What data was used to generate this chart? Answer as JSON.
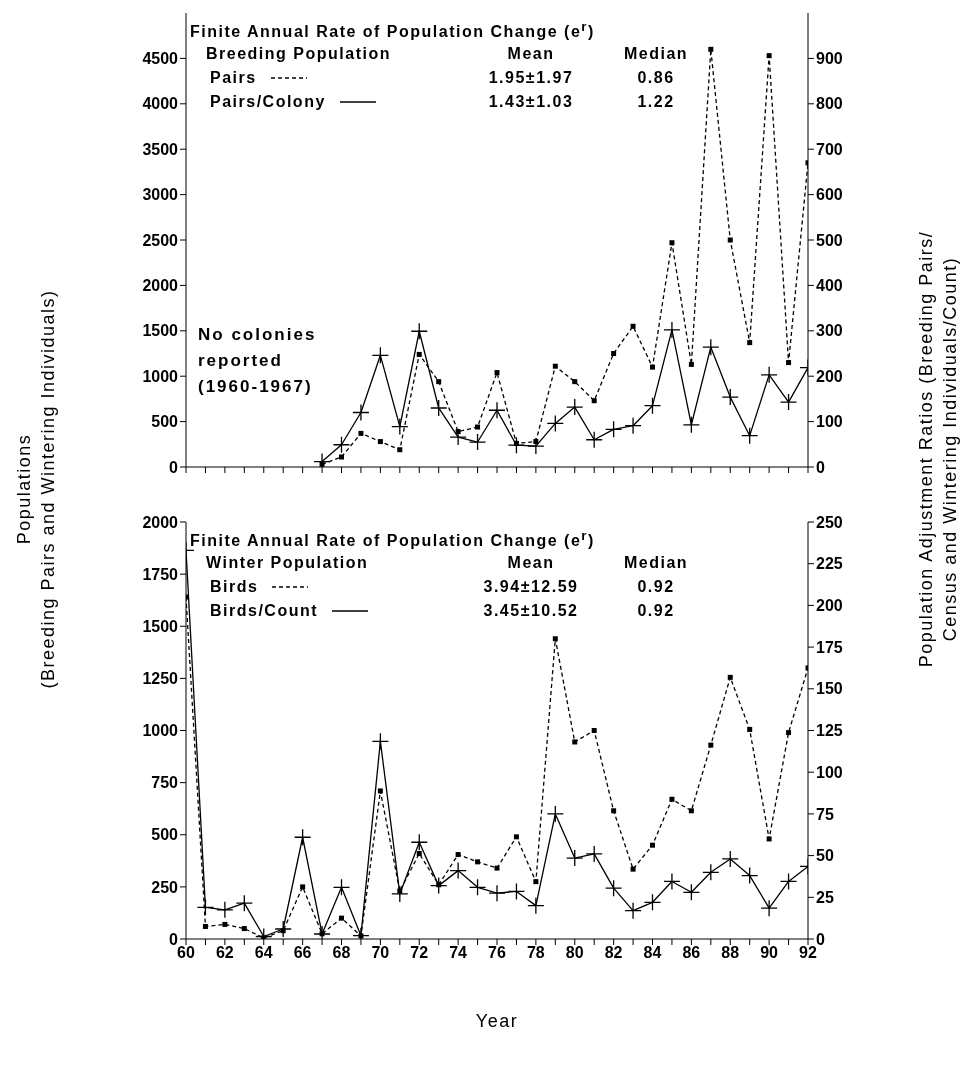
{
  "chart_data": [
    {
      "type": "line",
      "legend_title": "Finite Annual Rate of Population Change (e$^{r}$)",
      "ylabel": "Populations\n(Breeding Pairs and Wintering Individuals)",
      "y2label": "Population Adjustment Ratios (Breeding Pairs/\nCensus and Wintering Individuals/Count)",
      "annotations": [
        "Breeding Population",
        "Mean",
        "Median",
        "1.95±1.97",
        "0.86",
        "1.43±1.03",
        "1.22",
        "No colonies reported (1960-1967)"
      ],
      "x": [
        67,
        68,
        69,
        70,
        71,
        72,
        73,
        74,
        75,
        76,
        77,
        78,
        79,
        80,
        81,
        82,
        83,
        84,
        85,
        86,
        87,
        88,
        89,
        90,
        91,
        92
      ],
      "series": [
        {
          "name": "Pairs",
          "color": "#000000",
          "line_style": "dashed",
          "marker": "square",
          "values": [
            30,
            110,
            370,
            280,
            190,
            1240,
            940,
            390,
            440,
            1040,
            260,
            280,
            1110,
            940,
            730,
            1250,
            1550,
            1100,
            2470,
            1130,
            4600,
            2500,
            1370,
            4530,
            1150,
            3350
          ]
        },
        {
          "name": "Pairs/Colony",
          "color": "#000000",
          "line_style": "solid",
          "marker": "cross",
          "axis": "y2",
          "values": [
            12,
            49,
            120,
            246,
            89,
            299,
            130,
            66,
            55,
            125,
            48,
            46,
            96,
            132,
            60,
            83,
            91,
            135,
            302,
            93,
            264,
            154,
            69,
            203,
            143,
            219
          ]
        }
      ],
      "xlim": [
        60,
        92
      ],
      "xticks": [
        {
          "value": 60,
          "label": null
        },
        {
          "value": 61,
          "label": null
        },
        {
          "value": 62,
          "label": null
        },
        {
          "value": 63,
          "label": null
        },
        {
          "value": 64,
          "label": null
        },
        {
          "value": 65,
          "label": null
        },
        {
          "value": 66,
          "label": null
        },
        {
          "value": 67,
          "label": null
        },
        {
          "value": 68,
          "label": null
        },
        {
          "value": 69,
          "label": null
        },
        {
          "value": 70,
          "label": null
        },
        {
          "value": 71,
          "label": null
        },
        {
          "value": 72,
          "label": null
        },
        {
          "value": 73,
          "label": null
        },
        {
          "value": 74,
          "label": null
        },
        {
          "value": 75,
          "label": null
        },
        {
          "value": 76,
          "label": null
        },
        {
          "value": 77,
          "label": null
        },
        {
          "value": 78,
          "label": null
        },
        {
          "value": 79,
          "label": null
        },
        {
          "value": 80,
          "label": null
        },
        {
          "value": 81,
          "label": null
        },
        {
          "value": 82,
          "label": null
        },
        {
          "value": 83,
          "label": null
        },
        {
          "value": 84,
          "label": null
        },
        {
          "value": 85,
          "label": null
        },
        {
          "value": 86,
          "label": null
        },
        {
          "value": 87,
          "label": null
        },
        {
          "value": 88,
          "label": null
        },
        {
          "value": 89,
          "label": null
        },
        {
          "value": 90,
          "label": null
        },
        {
          "value": 91,
          "label": null
        },
        {
          "value": 92,
          "label": null
        }
      ],
      "ylim": [
        0,
        5000
      ],
      "yticks": [
        0,
        500,
        1000,
        1500,
        2000,
        2500,
        3000,
        3500,
        4000,
        4500
      ],
      "y2lim": [
        0,
        1000
      ],
      "y2ticks": [
        0,
        100,
        200,
        300,
        400,
        500,
        600,
        700,
        800,
        900
      ],
      "tick_labels": "y",
      "grid": false,
      "legend": "top left"
    },
    {
      "type": "line",
      "legend_title": "Finite Annual Rate of Population Change (e$^{r}$)",
      "xlabel": "Year",
      "annotations": [
        "Winter Population",
        "Mean",
        "Median",
        "3.94±12.59",
        "0.92",
        "3.45±10.52",
        "0.92"
      ],
      "x": [
        60,
        61,
        62,
        63,
        64,
        65,
        66,
        67,
        68,
        69,
        70,
        71,
        72,
        73,
        74,
        75,
        76,
        77,
        78,
        79,
        80,
        81,
        82,
        83,
        84,
        85,
        86,
        87,
        88,
        89,
        90,
        91,
        92
      ],
      "series": [
        {
          "name": "Birds",
          "color": "#000000",
          "line_style": "dashed",
          "marker": "square",
          "values": [
            1640,
            60,
            70,
            50,
            5,
            40,
            250,
            25,
            100,
            15,
            710,
            230,
            410,
            260,
            405,
            370,
            340,
            490,
            275,
            1440,
            945,
            1000,
            615,
            335,
            450,
            670,
            615,
            930,
            1255,
            1005,
            480,
            990,
            1300
          ]
        },
        {
          "name": "Birds/Count",
          "color": "#000000",
          "line_style": "solid",
          "marker": "cross",
          "axis": "y2",
          "values": [
            233,
            19,
            17.5,
            21.5,
            1.5,
            6,
            61,
            3,
            31,
            2,
            118.5,
            27,
            58,
            32,
            41,
            31,
            27.5,
            28.5,
            20,
            75,
            48.5,
            51,
            30.5,
            17,
            22,
            34.5,
            28,
            40,
            48,
            38,
            18.5,
            34.5,
            43.5
          ]
        }
      ],
      "xlim": [
        60,
        92
      ],
      "xticks": [
        60,
        {
          "value": 61,
          "label": null
        },
        62,
        {
          "value": 63,
          "label": null
        },
        64,
        {
          "value": 65,
          "label": null
        },
        66,
        {
          "value": 67,
          "label": null
        },
        68,
        {
          "value": 69,
          "label": null
        },
        70,
        {
          "value": 71,
          "label": null
        },
        72,
        {
          "value": 73,
          "label": null
        },
        74,
        {
          "value": 75,
          "label": null
        },
        76,
        {
          "value": 77,
          "label": null
        },
        78,
        {
          "value": 79,
          "label": null
        },
        80,
        {
          "value": 81,
          "label": null
        },
        82,
        {
          "value": 83,
          "label": null
        },
        84,
        {
          "value": 85,
          "label": null
        },
        86,
        {
          "value": 87,
          "label": null
        },
        88,
        {
          "value": 89,
          "label": null
        },
        90,
        {
          "value": 91,
          "label": null
        },
        92
      ],
      "ylim": [
        0,
        2000
      ],
      "yticks": [
        0,
        250,
        500,
        750,
        1000,
        1250,
        1500,
        1750,
        2000
      ],
      "y2lim": [
        0,
        250
      ],
      "y2ticks": [
        0,
        25,
        50,
        75,
        100,
        125,
        150,
        175,
        200,
        225,
        250
      ],
      "grid": false,
      "legend": "top left"
    }
  ]
}
